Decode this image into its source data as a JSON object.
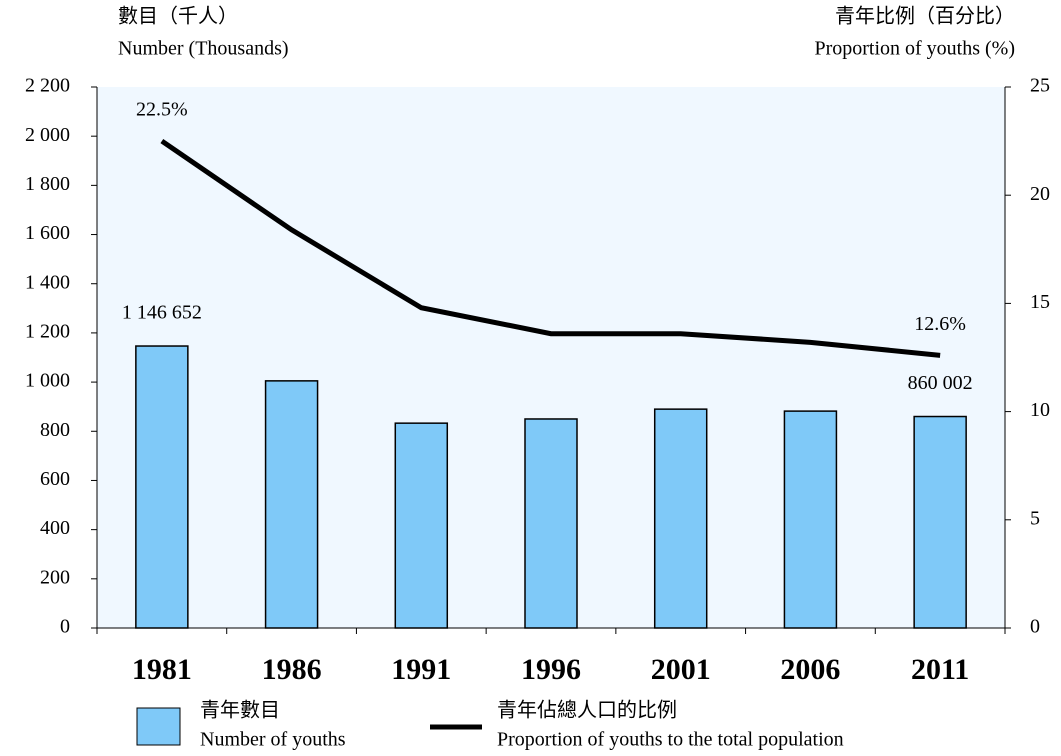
{
  "chart_data": {
    "type": "bar_line",
    "ylabel": [
      "數目（千人）",
      "Number (Thousands)"
    ],
    "y2label": [
      "青年比例（百分比）",
      "Proportion of youths (%)"
    ],
    "categories": [
      "1981",
      "1986",
      "1991",
      "1996",
      "2001",
      "2006",
      "2011"
    ],
    "series": [
      {
        "name": [
          "青年數目",
          "Number of youths"
        ],
        "type": "bar",
        "color": "#7fc9f8",
        "values": [
          1146.652,
          1005,
          833,
          850,
          890,
          882,
          860.002
        ],
        "value_labels": [
          "1 146 652",
          null,
          null,
          null,
          null,
          null,
          "860 002"
        ]
      },
      {
        "name": [
          "青年佔總人口的比例",
          "Proportion of youths to the total population"
        ],
        "type": "line",
        "axis": "y2",
        "color": "#000000",
        "values": [
          22.5,
          18.4,
          14.8,
          13.6,
          13.6,
          13.2,
          12.6
        ],
        "value_labels": [
          "22.5%",
          null,
          null,
          null,
          null,
          null,
          "12.6%"
        ]
      }
    ],
    "ylim": [
      0,
      2200
    ],
    "yticks": [
      0,
      200,
      400,
      600,
      800,
      {
        "value": 1000,
        "label": "1 000"
      },
      {
        "value": 1200,
        "label": "1 200"
      },
      {
        "value": 1400,
        "label": "1 400"
      },
      {
        "value": 1600,
        "label": "1 600"
      },
      {
        "value": 1800,
        "label": "1 800"
      },
      {
        "value": 2000,
        "label": "2 000"
      },
      {
        "value": 2200,
        "label": "2 200"
      }
    ],
    "y2lim": [
      0,
      25
    ],
    "y2ticks": [
      0,
      5,
      10,
      15,
      20,
      25
    ],
    "plot_background": "#f0f8ff"
  }
}
